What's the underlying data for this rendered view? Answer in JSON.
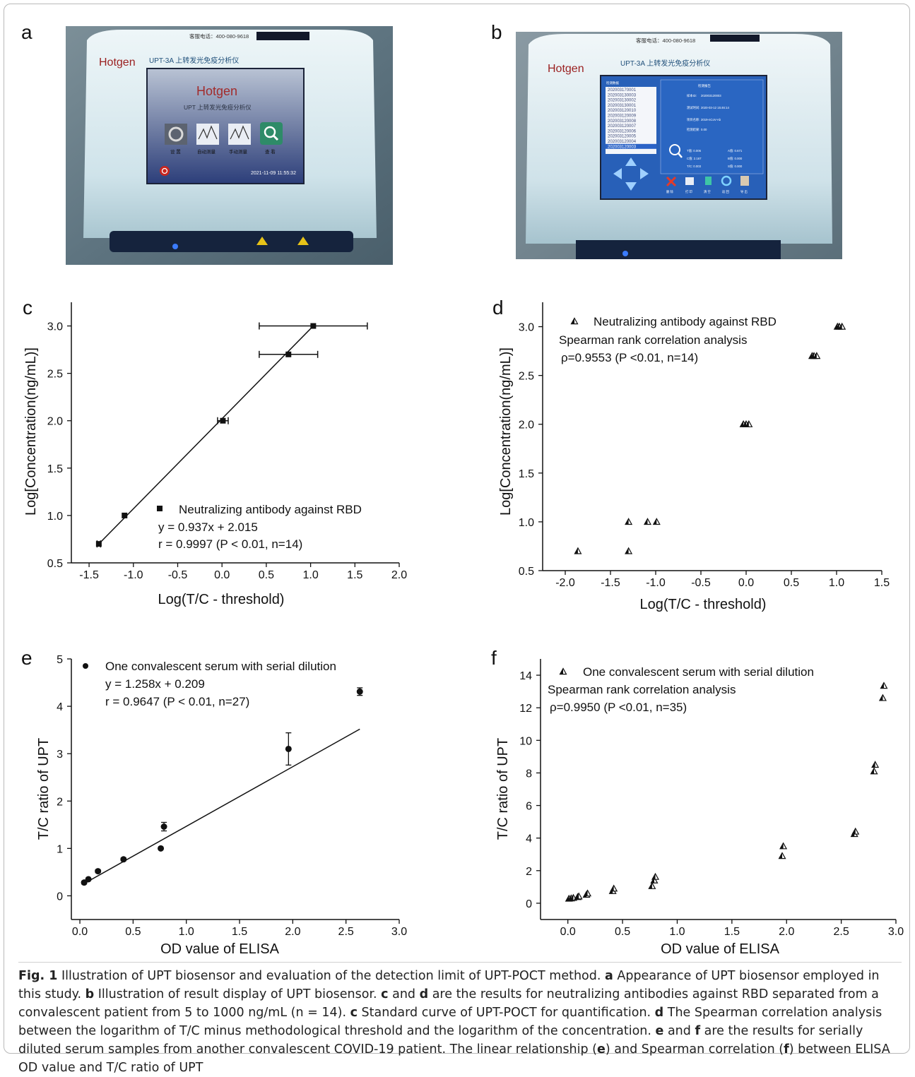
{
  "panels": {
    "a": "a",
    "b": "b",
    "c": "c",
    "d": "d",
    "e": "e",
    "f": "f"
  },
  "device_a": {
    "hotline": "客服电话：400-080-9618",
    "brand": "Hotgen",
    "model": "UPT-3A 上转发光免疫分析仪",
    "screen_brand": "Hotgen",
    "screen_title": "UPT 上转发光免疫分析仪",
    "menu": [
      "设 置",
      "自动测量",
      "手动测量",
      "查 看"
    ],
    "datetime": "2021-11-09 11:55:32"
  },
  "device_b": {
    "hotline": "客服电话：400-080-9618",
    "brand": "Hotgen",
    "model": "UPT-3A 上转发光免疫分析仪",
    "list_header": "检测数据",
    "sample_ids": [
      "202003170001",
      "202003130003",
      "202003130002",
      "202003130001",
      "202003120010",
      "202003120009",
      "202003120008",
      "202003120007",
      "202003120006",
      "202003120005",
      "202003120004",
      "202003120003"
    ],
    "result_title": "检测报告",
    "sample_id_label": "样本ID:",
    "sample_id_value": "202003120003",
    "test_time_label": "测试时间:",
    "test_time_value": "2020-03-12 15:46:14",
    "item_label": "项目名称:",
    "item_value": "2019-nCoV-Ab",
    "result_label": "检测结果:",
    "result_value": "0.00",
    "t_value": "T值: 0.006",
    "a_value": "A值: 0.671",
    "c_value": "C值: 2.167",
    "b_value": "B值: 0.000",
    "tc_value": "T/C: 0.003",
    "s_value": "S值: 0.000",
    "buttons": [
      "删 除",
      "打 印",
      "清 空",
      "返 回",
      "导 出"
    ]
  },
  "chart_data": [
    {
      "panel": "c",
      "type": "scatter",
      "xlabel": "Log(T/C - threshold)",
      "ylabel": "Log[Concentration(ng/mL)]",
      "xlim": [
        -1.7,
        2.0
      ],
      "ylim": [
        0.5,
        3.25
      ],
      "xticks": [
        -1.5,
        -1.0,
        -0.5,
        0.0,
        0.5,
        1.0,
        1.5,
        2.0
      ],
      "xtick_labels": [
        "-1.5",
        "-1.0",
        "-0.5",
        "0.0",
        "0.5",
        "1.0",
        "1.5",
        "2.0"
      ],
      "yticks": [
        0.5,
        1.0,
        1.5,
        2.0,
        2.5,
        3.0
      ],
      "ytick_labels": [
        "0.5",
        "1.0",
        "1.5",
        "2.0",
        "2.5",
        "3.0"
      ],
      "points": [
        {
          "x": -1.39,
          "y": 0.7,
          "xerr": 0.02
        },
        {
          "x": -1.1,
          "y": 1.0,
          "xerr": 0.0
        },
        {
          "x": 0.01,
          "y": 2.0,
          "xerr": 0.06
        },
        {
          "x": 0.75,
          "y": 2.7,
          "xerr": 0.33
        },
        {
          "x": 1.03,
          "y": 3.0,
          "xerr": 0.61
        }
      ],
      "fit_line": {
        "x1": -1.39,
        "y1": 0.7,
        "x2": 1.03,
        "y2": 3.0
      },
      "legend": [
        "Neutralizing antibody against RBD",
        "y = 0.937x + 2.015",
        "r = 0.9997 (P < 0.01, n=14)"
      ],
      "legend_position": "lower-right"
    },
    {
      "panel": "d",
      "type": "scatter",
      "xlabel": "Log(T/C - threshold)",
      "ylabel": "Log[Concentration(ng/mL)]",
      "xlim": [
        -2.25,
        1.5
      ],
      "ylim": [
        0.5,
        3.25
      ],
      "xticks": [
        -2.0,
        -1.5,
        -1.0,
        -0.5,
        0.0,
        0.5,
        1.0,
        1.5
      ],
      "xtick_labels": [
        "-2.0",
        "-1.5",
        "-1.0",
        "-0.5",
        "0.0",
        "0.5",
        "1.0",
        "1.5"
      ],
      "yticks": [
        0.5,
        1.0,
        1.5,
        2.0,
        2.5,
        3.0
      ],
      "ytick_labels": [
        "0.5",
        "1.0",
        "1.5",
        "2.0",
        "2.5",
        "3.0"
      ],
      "points": [
        {
          "x": -1.86,
          "y": 0.7
        },
        {
          "x": -1.3,
          "y": 0.7
        },
        {
          "x": -1.3,
          "y": 1.0
        },
        {
          "x": -1.09,
          "y": 1.0
        },
        {
          "x": -0.99,
          "y": 1.0
        },
        {
          "x": -0.03,
          "y": 2.0
        },
        {
          "x": 0.0,
          "y": 2.0
        },
        {
          "x": 0.03,
          "y": 2.0
        },
        {
          "x": 0.73,
          "y": 2.7
        },
        {
          "x": 0.75,
          "y": 2.7
        },
        {
          "x": 0.78,
          "y": 2.7
        },
        {
          "x": 1.01,
          "y": 3.0
        },
        {
          "x": 1.03,
          "y": 3.0
        },
        {
          "x": 1.06,
          "y": 3.0
        }
      ],
      "legend": [
        "Neutralizing antibody against RBD",
        "Spearman rank correlation analysis",
        "ρ=0.9553  (P <0.01, n=14)"
      ],
      "legend_position": "top-left"
    },
    {
      "panel": "e",
      "type": "scatter",
      "xlabel": "OD value of ELISA",
      "ylabel": "T/C ratio of UPT",
      "xlim": [
        -0.08,
        3.0
      ],
      "ylim": [
        -0.5,
        5.0
      ],
      "xticks": [
        0.0,
        0.5,
        1.0,
        1.5,
        2.0,
        2.5,
        3.0
      ],
      "xtick_labels": [
        "0.0",
        "0.5",
        "1.0",
        "1.5",
        "2.0",
        "2.5",
        "3.0"
      ],
      "yticks": [
        0,
        1,
        2,
        3,
        4,
        5
      ],
      "ytick_labels": [
        "0",
        "1",
        "2",
        "3",
        "4",
        "5"
      ],
      "points": [
        {
          "x": 0.04,
          "y": 0.28,
          "yerr": 0.03
        },
        {
          "x": 0.08,
          "y": 0.35,
          "yerr": 0.02
        },
        {
          "x": 0.17,
          "y": 0.52,
          "yerr": 0.03
        },
        {
          "x": 0.41,
          "y": 0.77,
          "yerr": 0.03
        },
        {
          "x": 0.76,
          "y": 1.0,
          "yerr": 0.02
        },
        {
          "x": 0.79,
          "y": 1.46,
          "yerr": 0.09
        },
        {
          "x": 1.96,
          "y": 3.1,
          "yerr": 0.34
        },
        {
          "x": 2.63,
          "y": 4.31,
          "yerr": 0.08
        }
      ],
      "fit_line": {
        "x1": 0.04,
        "y1": 0.259,
        "x2": 2.63,
        "y2": 3.518
      },
      "legend": [
        "One convalescent serum with serial dilution",
        "y = 1.258x + 0.209",
        "r = 0.9647 (P < 0.01, n=27)"
      ],
      "legend_position": "top-left"
    },
    {
      "panel": "f",
      "type": "scatter",
      "xlabel": "OD value of ELISA",
      "ylabel": "T/C ratio of UPT",
      "xlim": [
        -0.25,
        3.0
      ],
      "ylim": [
        -1.0,
        15.0
      ],
      "xticks": [
        0.0,
        0.5,
        1.0,
        1.5,
        2.0,
        2.5,
        3.0
      ],
      "xtick_labels": [
        "0.0",
        "0.5",
        "1.0",
        "1.5",
        "2.0",
        "2.5",
        "3.0"
      ],
      "yticks": [
        0,
        2,
        4,
        6,
        8,
        10,
        12,
        14
      ],
      "ytick_labels": [
        "0",
        "2",
        "4",
        "6",
        "8",
        "10",
        "12",
        "14"
      ],
      "points": [
        {
          "x": 0.01,
          "y": 0.28
        },
        {
          "x": 0.03,
          "y": 0.3
        },
        {
          "x": 0.05,
          "y": 0.33
        },
        {
          "x": 0.09,
          "y": 0.38
        },
        {
          "x": 0.1,
          "y": 0.42
        },
        {
          "x": 0.17,
          "y": 0.52
        },
        {
          "x": 0.18,
          "y": 0.6
        },
        {
          "x": 0.41,
          "y": 0.75
        },
        {
          "x": 0.42,
          "y": 0.9
        },
        {
          "x": 0.77,
          "y": 1.05
        },
        {
          "x": 0.79,
          "y": 1.4
        },
        {
          "x": 0.8,
          "y": 1.62
        },
        {
          "x": 1.96,
          "y": 2.9
        },
        {
          "x": 1.97,
          "y": 3.5
        },
        {
          "x": 2.62,
          "y": 4.25
        },
        {
          "x": 2.63,
          "y": 4.4
        },
        {
          "x": 2.8,
          "y": 8.1
        },
        {
          "x": 2.81,
          "y": 8.5
        },
        {
          "x": 2.88,
          "y": 12.6
        },
        {
          "x": 2.89,
          "y": 13.35
        }
      ],
      "legend": [
        "One convalescent serum with serial dilution",
        "Spearman rank correlation analysis",
        "ρ=0.9950  (P <0.01, n=35)"
      ],
      "legend_position": "top-left"
    }
  ],
  "caption": {
    "fig_label": "Fig. 1",
    "title": "  Illustration of UPT biosensor and evaluation of the detection limit of UPT-POCT method. ",
    "a_label": "a",
    "a_text": " Appearance of UPT biosensor employed in this study. ",
    "b_label": "b",
    "b_text": " Illustration of result display of UPT biosensor. ",
    "cd_label1": "c",
    "cd_and": " and ",
    "cd_label2": "d",
    "cd_text": " are the results for neutralizing antibodies against RBD separated from a convalescent patient from 5 to 1000 ng/mL (n = 14). ",
    "c_label": "c",
    "c_text": " Standard curve of UPT-POCT for quantification. ",
    "d_label": "d",
    "d_text": " The Spearman correlation analysis between the logarithm of T/C minus methodological threshold and the logarithm of the concentration. ",
    "ef_label1": "e",
    "ef_and": " and ",
    "ef_label2": "f",
    "ef_text": " are the results for serially diluted serum samples from another convalescent COVID-19 patient. The linear relationship (",
    "e_label": "e",
    "e_text": ") and Spearman correlation (",
    "f_label": "f",
    "f_text": ") between ELISA OD value and T/C ratio of UPT"
  }
}
